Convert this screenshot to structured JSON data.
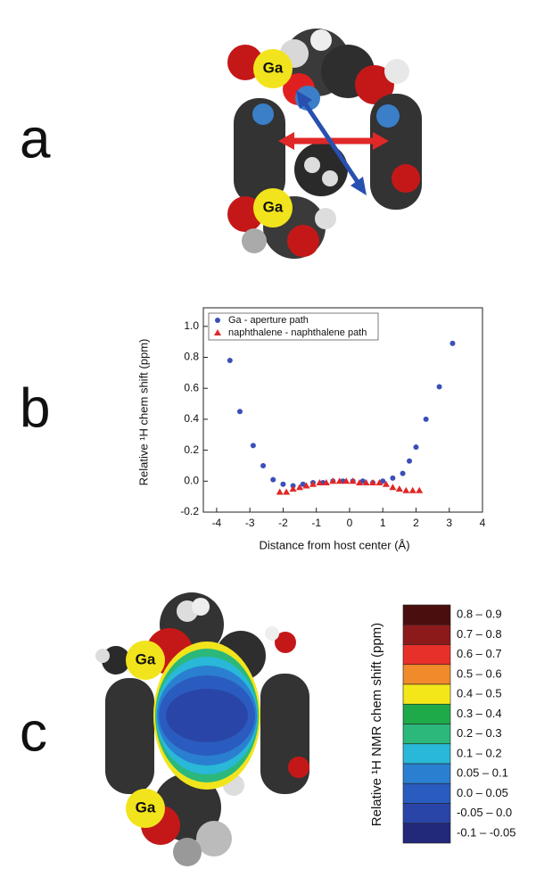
{
  "panel_labels": [
    "a",
    "b",
    "c"
  ],
  "molecule_a_labels": [
    "Ga",
    "Ga"
  ],
  "molecule_c_labels": [
    "Ga",
    "Ga"
  ],
  "chart_data": {
    "type": "scatter",
    "x_label": "Distance from host center (Å)",
    "y_label": "Relative ¹H chem shift (ppm)",
    "xlim": [
      -4.4,
      4
    ],
    "xticks": [
      -4,
      -3,
      -2,
      -1,
      0,
      1,
      2,
      3,
      4
    ],
    "ylim": [
      -0.2,
      1.12
    ],
    "yticks": [
      -0.2,
      {
        "value": 0,
        "label": "0.0"
      },
      0.2,
      0.4,
      0.6,
      0.8,
      {
        "value": 1,
        "label": "1.0"
      }
    ],
    "legend": "upper left",
    "series": [
      {
        "name": "Ga - aperture path",
        "color": "#3a4fb8",
        "marker": "circle",
        "x": [
          -3.6,
          -3.3,
          -2.9,
          -2.6,
          -2.3,
          -2.0,
          -1.7,
          -1.4,
          -1.1,
          -0.8,
          -0.5,
          -0.2,
          0.1,
          0.4,
          0.7,
          1.0,
          1.3,
          1.6,
          1.8,
          2.0,
          2.3,
          2.7,
          3.1
        ],
        "values": [
          0.78,
          0.45,
          0.23,
          0.1,
          0.01,
          -0.02,
          -0.03,
          -0.02,
          -0.01,
          -0.01,
          0,
          0,
          0,
          0,
          -0.01,
          0,
          0.02,
          0.05,
          0.13,
          0.22,
          0.4,
          0.61,
          0.89
        ]
      },
      {
        "name": "naphthalene - naphthalene path",
        "color": "#e02828",
        "marker": "triangle",
        "x": [
          -2.1,
          -1.9,
          -1.7,
          -1.5,
          -1.3,
          -1.1,
          -0.9,
          -0.7,
          -0.5,
          -0.3,
          -0.1,
          0.1,
          0.3,
          0.5,
          0.7,
          0.9,
          1.1,
          1.3,
          1.5,
          1.7,
          1.9,
          2.1
        ],
        "values": [
          -0.07,
          -0.07,
          -0.05,
          -0.04,
          -0.03,
          -0.02,
          -0.01,
          -0.01,
          0,
          0,
          0,
          0,
          -0.01,
          -0.01,
          -0.01,
          -0.01,
          -0.02,
          -0.04,
          -0.05,
          -0.06,
          -0.06,
          -0.06
        ]
      }
    ]
  },
  "color_legend": {
    "title": "Relative ¹H NMR chem shift (ppm)",
    "entries": [
      {
        "label": "0.8 – 0.9",
        "color": "#4a0e0e"
      },
      {
        "label": "0.7 – 0.8",
        "color": "#8c1a1a"
      },
      {
        "label": "0.6 – 0.7",
        "color": "#e8302a"
      },
      {
        "label": "0.5 – 0.6",
        "color": "#f08a2a"
      },
      {
        "label": "0.4 – 0.5",
        "color": "#f3e71a"
      },
      {
        "label": "0.3 – 0.4",
        "color": "#1faa4a"
      },
      {
        "label": "0.2 – 0.3",
        "color": "#2bb87a"
      },
      {
        "label": "0.1 – 0.2",
        "color": "#29b8d8"
      },
      {
        "label": "0.05 – 0.1",
        "color": "#2a7fd0"
      },
      {
        "label": "0.0 – 0.05",
        "color": "#2a5cc0"
      },
      {
        "label": "-0.05 – 0.0",
        "color": "#2a45a8"
      },
      {
        "label": "-0.1 – -0.05",
        "color": "#22287a"
      }
    ]
  }
}
